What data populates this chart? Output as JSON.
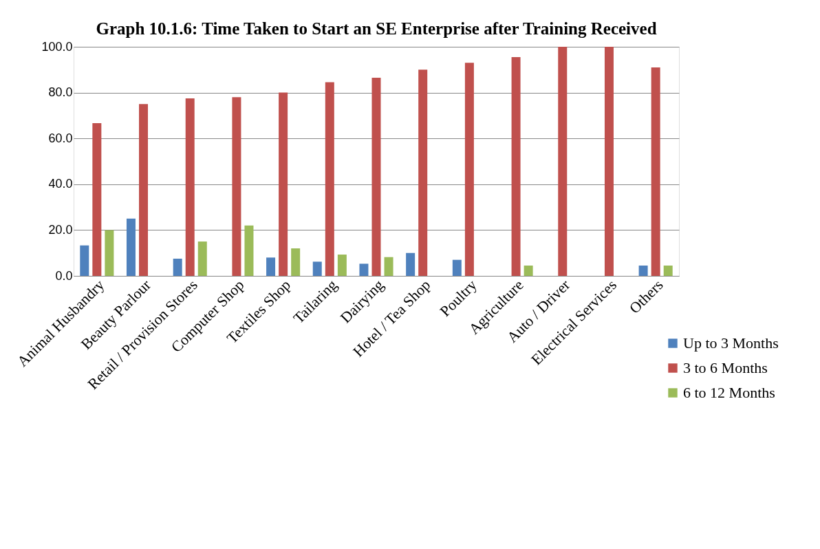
{
  "chart_data": {
    "type": "bar",
    "title": "Graph 10.1.6:  Time Taken to Start an SE Enterprise after Training Received",
    "categories": [
      "Animal Husbandry",
      "Beauty Parlour",
      "Retail / Provision Stores",
      "Computer Shop",
      "Textiles Shop",
      "Tailaring",
      "Dairying",
      "Hotel / Tea Shop",
      "Poultry",
      "Agriculture",
      "Auto / Driver",
      "Electrical Services",
      "Others"
    ],
    "series": [
      {
        "name": "Up to 3 Months",
        "color": "#4f81bd",
        "values": [
          13.3,
          25.0,
          7.5,
          null,
          8.0,
          6.2,
          5.3,
          10.0,
          7.0,
          null,
          null,
          null,
          4.5
        ]
      },
      {
        "name": "3 to 6 Months",
        "color": "#c0504d",
        "values": [
          66.7,
          75.0,
          77.5,
          78.0,
          80.0,
          84.5,
          86.5,
          90.0,
          93.0,
          95.5,
          100.0,
          100.0,
          91.0
        ]
      },
      {
        "name": "6 to 12 Months",
        "color": "#9bbb59",
        "values": [
          20.0,
          null,
          15.0,
          22.0,
          12.0,
          9.3,
          8.2,
          null,
          null,
          4.5,
          null,
          null,
          4.5
        ]
      }
    ],
    "ylim": [
      0,
      100
    ],
    "yticks": [
      {
        "value": 0,
        "label": "0.0"
      },
      {
        "value": 20,
        "label": "20.0"
      },
      {
        "value": 40,
        "label": "40.0"
      },
      {
        "value": 60,
        "label": "60.0"
      },
      {
        "value": 80,
        "label": "80.0"
      },
      {
        "value": 100,
        "label": "100.0"
      }
    ],
    "grid": "y",
    "legend": "bottom right"
  }
}
